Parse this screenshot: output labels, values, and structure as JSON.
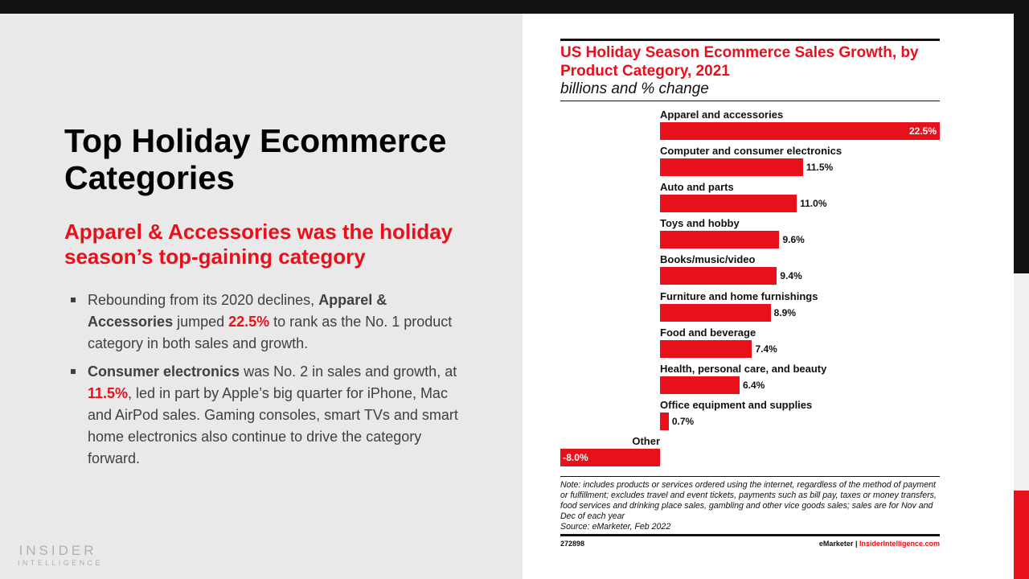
{
  "slide": {
    "title": "Top Holiday Ecommerce Categories",
    "subtitle": "Apparel & Accessories was the holiday season’s top-gaining category",
    "bullets": [
      {
        "pre": "Rebounding from its 2020 declines, ",
        "bold": "Apparel & Accessories",
        "mid": " jumped ",
        "highlight": "22.5%",
        "post": " to rank as the No. 1 product category in both sales and growth."
      },
      {
        "bold": "Consumer electronics",
        "mid": " was No. 2 in sales and growth, at ",
        "highlight": "11.5%",
        "post": ", led in part by Apple’s big quarter for iPhone, Mac and AirPod sales. Gaming consoles, smart TVs and smart home electronics also continue to drive the category forward."
      }
    ],
    "logo": {
      "line1": "INSIDER",
      "line2": "INTELLIGENCE"
    }
  },
  "colors": {
    "accent": "#e8101b",
    "dark": "#121212",
    "panel": "#e9e9e9"
  },
  "chart_data": {
    "type": "bar",
    "orientation": "horizontal",
    "title": "US Holiday Season Ecommerce Sales Growth, by Product Category, 2021",
    "subtitle": "billions and % change",
    "categories": [
      "Apparel and accessories",
      "Computer and consumer electronics",
      "Auto and parts",
      "Toys and hobby",
      "Books/music/video",
      "Furniture and home furnishings",
      "Food and beverage",
      "Health, personal care, and beauty",
      "Office equipment and supplies",
      "Other"
    ],
    "values": [
      22.5,
      11.5,
      11.0,
      9.6,
      9.4,
      8.9,
      7.4,
      6.4,
      0.7,
      -8.0
    ],
    "value_labels": [
      "22.5%",
      "11.5%",
      "11.0%",
      "9.6%",
      "9.4%",
      "8.9%",
      "7.4%",
      "6.4%",
      "0.7%",
      "-8.0%"
    ],
    "bar_color": "#e8101b",
    "note": "Note: includes products or services ordered using the internet, regardless of the method of payment or fulfillment; excludes travel and event tickets, payments such as bill pay, taxes or money transfers, food services and drinking place sales, gambling and other vice goods sales; sales are for Nov and Dec of each year",
    "source": "Source: eMarketer, Feb 2022",
    "chart_id": "272898",
    "credit_left": "eMarketer",
    "credit_sep": " | ",
    "credit_right": "InsiderIntelligence.com"
  }
}
